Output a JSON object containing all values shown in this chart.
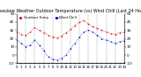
{
  "title": "Milwaukee Weather Outdoor Temperature (vs) Wind Chill (Last 24 Hours)",
  "title_fontsize": 3.5,
  "background_color": "#ffffff",
  "grid_color": "#888888",
  "temp_color": "#cc0000",
  "windchill_color": "#0000cc",
  "xlim": [
    0,
    24
  ],
  "ylim": [
    -10,
    50
  ],
  "yticks": [
    -10,
    0,
    10,
    20,
    30,
    40,
    50
  ],
  "ytick_labels": [
    "-10",
    "0",
    "10",
    "20",
    "30",
    "40",
    "50"
  ],
  "ytick_fontsize": 3.0,
  "xtick_fontsize": 2.8,
  "x_hours": [
    0,
    1,
    2,
    3,
    4,
    5,
    6,
    7,
    8,
    9,
    10,
    11,
    12,
    13,
    14,
    15,
    16,
    17,
    18,
    19,
    20,
    21,
    22,
    23,
    24
  ],
  "temp_values": [
    28,
    25,
    24,
    28,
    33,
    30,
    27,
    24,
    22,
    21,
    23,
    27,
    31,
    36,
    40,
    42,
    38,
    35,
    32,
    30,
    28,
    26,
    25,
    27,
    28
  ],
  "windchill_values": [
    18,
    14,
    10,
    12,
    18,
    12,
    5,
    -2,
    -5,
    -6,
    -4,
    0,
    8,
    14,
    22,
    28,
    30,
    28,
    24,
    20,
    18,
    16,
    14,
    16,
    17
  ],
  "legend_temp": "Outdoor Temp",
  "legend_wc": "Wind Chill",
  "legend_fontsize": 2.8,
  "right_yticks": [
    -10,
    0,
    10,
    20,
    30,
    40,
    50
  ],
  "right_ytick_labels": [
    "-10",
    "0",
    "10",
    "20",
    "30",
    "40",
    "50"
  ],
  "xtick_positions": [
    0,
    1,
    2,
    3,
    4,
    5,
    6,
    7,
    8,
    9,
    10,
    11,
    12,
    13,
    14,
    15,
    16,
    17,
    18,
    19,
    20,
    21,
    22,
    23,
    24
  ],
  "xtick_labels_str": [
    "0",
    "1",
    "2",
    "3",
    "4",
    "5",
    "6",
    "7",
    "8",
    "9",
    "10",
    "11",
    "12",
    "13",
    "14",
    "15",
    "16",
    "17",
    "18",
    "19",
    "20",
    "21",
    "22",
    "23",
    "24"
  ]
}
